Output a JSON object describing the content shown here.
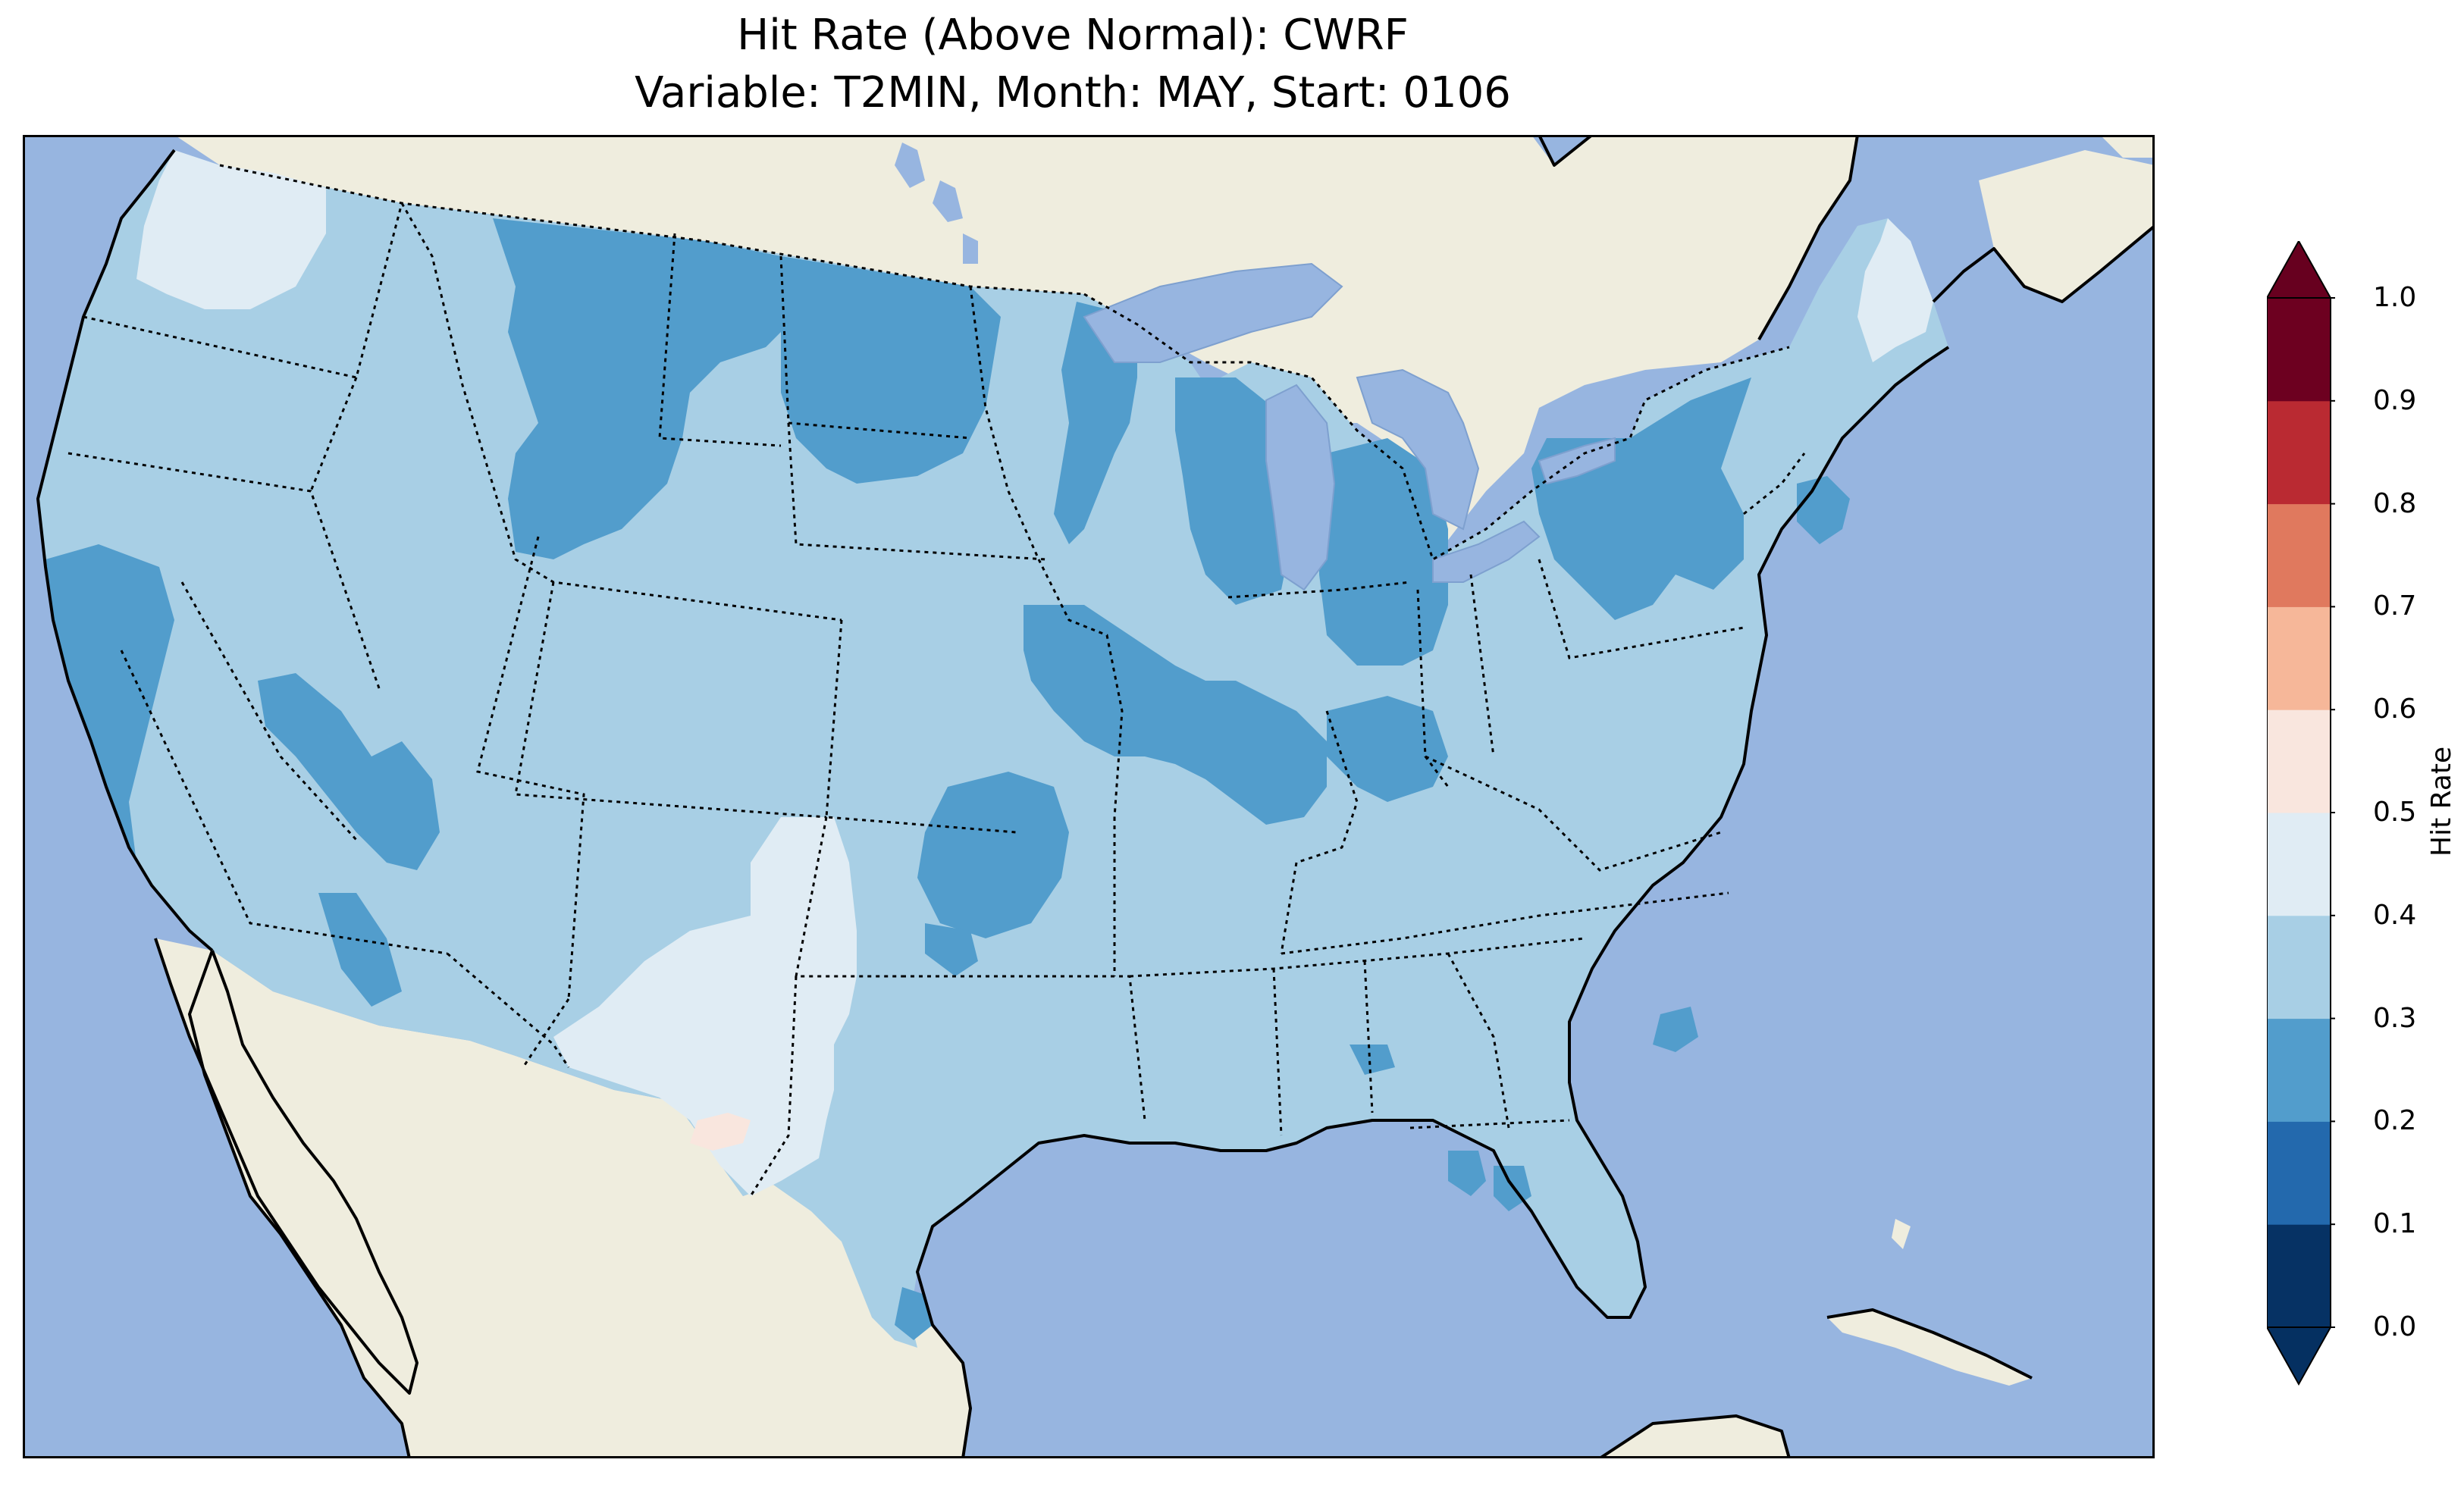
{
  "title": {
    "line1": "Hit Rate (Above Normal): CWRF",
    "line2": "Variable: T2MIN, Month: MAY, Start: 0106"
  },
  "colors": {
    "ocean": "#97b5e0",
    "land": "#efedde",
    "lake": "#97b5e0"
  },
  "colorbar": {
    "label": "Hit Rate",
    "ticks": [
      "0.0",
      "0.1",
      "0.2",
      "0.3",
      "0.4",
      "0.5",
      "0.6",
      "0.7",
      "0.8",
      "0.9",
      "1.0"
    ],
    "colors": [
      "#053061",
      "#2166ac",
      "#4393c3",
      "#92c5de",
      "#d1e5f0",
      "#f7f7f7",
      "#fddbc7",
      "#f4a582",
      "#d6604d",
      "#b2182b",
      "#67001f"
    ],
    "bins": [
      {
        "range": "0.0-0.1",
        "color": "#063264"
      },
      {
        "range": "0.1-0.2",
        "color": "#2369ad"
      },
      {
        "range": "0.2-0.3",
        "color": "#529dcc"
      },
      {
        "range": "0.3-0.4",
        "color": "#a8cfe5"
      },
      {
        "range": "0.4-0.5",
        "color": "#e0ecf4"
      },
      {
        "range": "0.5-0.6",
        "color": "#f9e6de"
      },
      {
        "range": "0.6-0.7",
        "color": "#f6b799"
      },
      {
        "range": "0.7-0.8",
        "color": "#e0795e"
      },
      {
        "range": "0.8-0.9",
        "color": "#ba2a32"
      },
      {
        "range": "0.9-1.0",
        "color": "#6d0020"
      }
    ],
    "extend": "both"
  },
  "field": {
    "dominant_bin": "0.3-0.4",
    "regions": [
      {
        "name": "pacific-northwest",
        "bin": "0.4-0.5"
      },
      {
        "name": "california-coast",
        "bin": "0.2-0.3"
      },
      {
        "name": "nevada",
        "bin": "0.2-0.3"
      },
      {
        "name": "arizona",
        "bin": "0.2-0.3"
      },
      {
        "name": "montana-wyoming",
        "bin": "0.2-0.3"
      },
      {
        "name": "north-dakota",
        "bin": "0.2-0.3"
      },
      {
        "name": "minnesota-wisconsin",
        "bin": "0.2-0.3"
      },
      {
        "name": "iowa-illinois-indiana",
        "bin": "0.2-0.3"
      },
      {
        "name": "michigan",
        "bin": "0.2-0.3"
      },
      {
        "name": "kansas",
        "bin": "0.2-0.3"
      },
      {
        "name": "new-york-pennsylvania",
        "bin": "0.2-0.3"
      },
      {
        "name": "new-mexico-west-texas",
        "bin": "0.4-0.5"
      },
      {
        "name": "west-texas-spot",
        "bin": "0.5-0.6"
      },
      {
        "name": "maine",
        "bin": "0.4-0.5"
      },
      {
        "name": "south-texas-coast",
        "bin": "0.2-0.3"
      },
      {
        "name": "florida-gulf-coast",
        "bin": "0.2-0.3"
      },
      {
        "name": "north-carolina-coast",
        "bin": "0.2-0.3"
      }
    ]
  }
}
